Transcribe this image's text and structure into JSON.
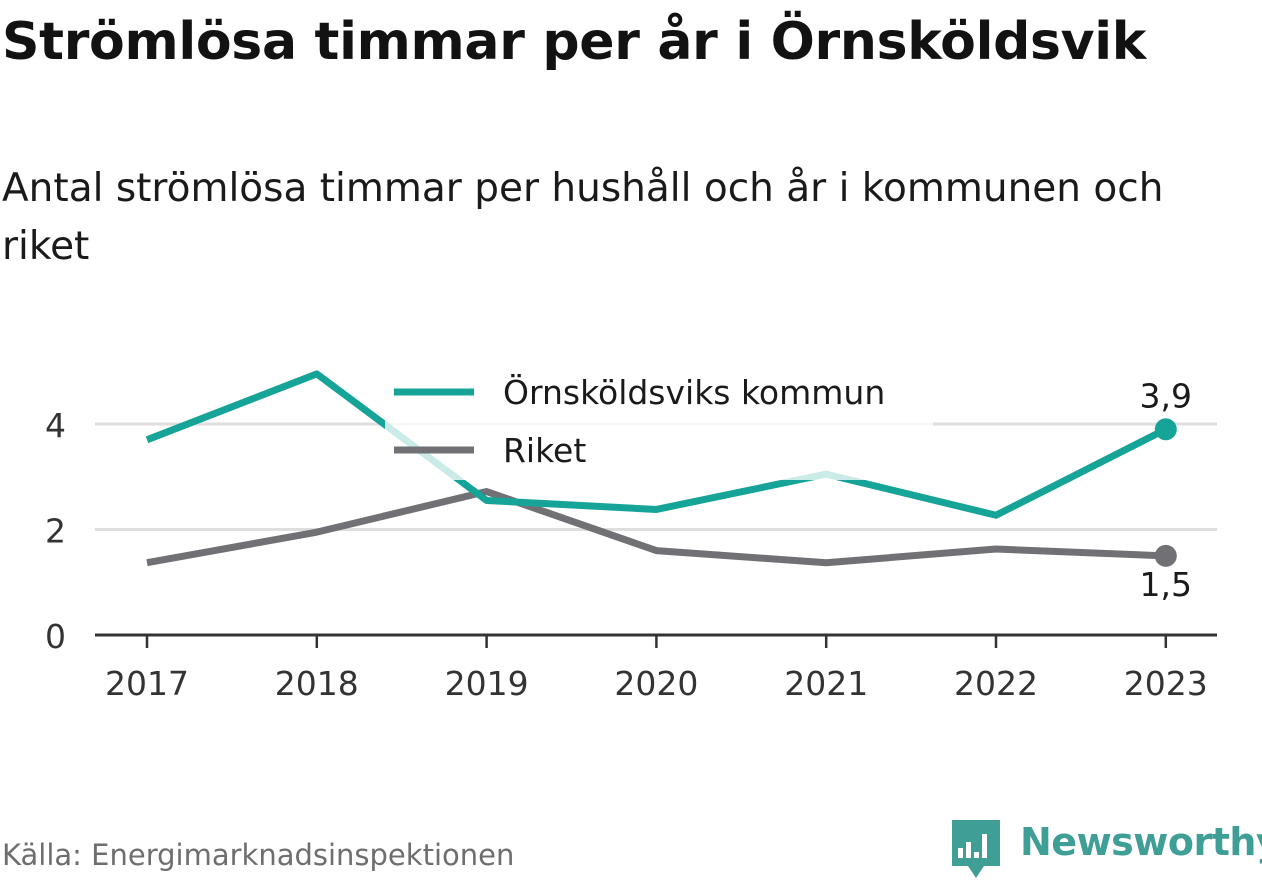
{
  "title": "Strömlösa timmar per år i Örnsköldsvik",
  "subtitle": "Antal strömlösa timmar per hushåll och år i kommunen och riket",
  "source": "Källa: Energimarknadsinspektionen",
  "brand": {
    "name": "Newsworthy",
    "icon": "newsworthy-logo-icon",
    "color": "#3f9e96"
  },
  "chart_data": {
    "type": "line",
    "x": [
      "2017",
      "2018",
      "2019",
      "2020",
      "2021",
      "2022",
      "2023"
    ],
    "ylim": [
      0,
      5
    ],
    "yticks": [
      0,
      2,
      4
    ],
    "grid": true,
    "legend_position": "top-center",
    "series": [
      {
        "name": "Örnsköldsviks kommun",
        "color": "#16a398",
        "values": [
          3.7,
          4.95,
          2.55,
          2.38,
          3.05,
          2.27,
          3.9
        ],
        "end_label": "3,9"
      },
      {
        "name": "Riket",
        "color": "#717175",
        "values": [
          1.37,
          1.95,
          2.72,
          1.6,
          1.37,
          1.63,
          1.5
        ],
        "end_label": "1,5"
      }
    ]
  }
}
